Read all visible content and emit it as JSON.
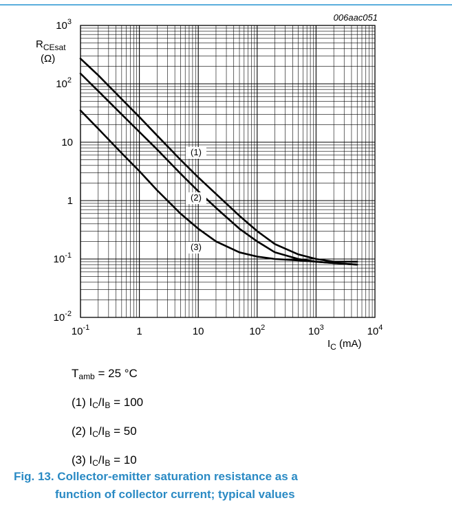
{
  "colors": {
    "rule": "#5aaedc",
    "caption": "#2a8ac4",
    "grid": "#000000",
    "curve": "#000000"
  },
  "doc_id": "006aac051",
  "chart_data": {
    "type": "line",
    "x_scale": "log",
    "y_scale": "log",
    "xlim": [
      0.1,
      10000
    ],
    "ylim": [
      0.01,
      1000
    ],
    "grid": true,
    "x_ticks": [
      {
        "base": "10",
        "exp": "-1"
      },
      {
        "base": "1",
        "exp": ""
      },
      {
        "base": "10",
        "exp": ""
      },
      {
        "base": "10",
        "exp": "2"
      },
      {
        "base": "10",
        "exp": "3"
      },
      {
        "base": "10",
        "exp": "4"
      }
    ],
    "y_ticks": [
      {
        "base": "10",
        "exp": "-2"
      },
      {
        "base": "10",
        "exp": "-1"
      },
      {
        "base": "1",
        "exp": ""
      },
      {
        "base": "10",
        "exp": ""
      },
      {
        "base": "10",
        "exp": "2"
      },
      {
        "base": "10",
        "exp": "3"
      }
    ],
    "xlabel": {
      "main": "I",
      "sub": "C",
      "unit": " (mA)"
    },
    "ylabel": {
      "main": "R",
      "sub": "CEsat",
      "unit": "(Ω)"
    },
    "series": [
      {
        "label": "(1)",
        "x": [
          0.1,
          0.2,
          0.5,
          1,
          2,
          5,
          10,
          20,
          50,
          100,
          200,
          500,
          1000,
          2000,
          5000
        ],
        "y": [
          270,
          140,
          55,
          27,
          13,
          5.0,
          2.5,
          1.3,
          0.55,
          0.3,
          0.18,
          0.12,
          0.1,
          0.09,
          0.09
        ]
      },
      {
        "label": "(2)",
        "x": [
          0.1,
          0.2,
          0.5,
          1,
          2,
          5,
          10,
          20,
          50,
          100,
          200,
          500,
          1000,
          2000,
          5000
        ],
        "y": [
          150,
          75,
          30,
          15,
          7.5,
          2.9,
          1.45,
          0.75,
          0.33,
          0.2,
          0.13,
          0.1,
          0.09,
          0.085,
          0.08
        ]
      },
      {
        "label": "(3)",
        "x": [
          0.1,
          0.2,
          0.5,
          1,
          2,
          5,
          10,
          20,
          50,
          100,
          200,
          500,
          1000,
          2000,
          5000
        ],
        "y": [
          35,
          17,
          6.5,
          3.2,
          1.5,
          0.6,
          0.33,
          0.2,
          0.13,
          0.11,
          0.1,
          0.095,
          0.09,
          0.085,
          0.08
        ]
      }
    ]
  },
  "legend": {
    "tamb": {
      "main": "T",
      "sub": "amb",
      "rest": " = 25 °C"
    },
    "items": [
      {
        "num": "(1) ",
        "ic": "I",
        "ic_sub": "C",
        "ib": "/I",
        "ib_sub": "B",
        "rest": " = 100"
      },
      {
        "num": "(2) ",
        "ic": "I",
        "ic_sub": "C",
        "ib": "/I",
        "ib_sub": "B",
        "rest": " = 50"
      },
      {
        "num": "(3) ",
        "ic": "I",
        "ic_sub": "C",
        "ib": "/I",
        "ib_sub": "B",
        "rest": " = 10"
      }
    ]
  },
  "caption": {
    "line1": "Fig. 13.  Collector-emitter saturation resistance as a",
    "line2": "function of collector current; typical values"
  }
}
